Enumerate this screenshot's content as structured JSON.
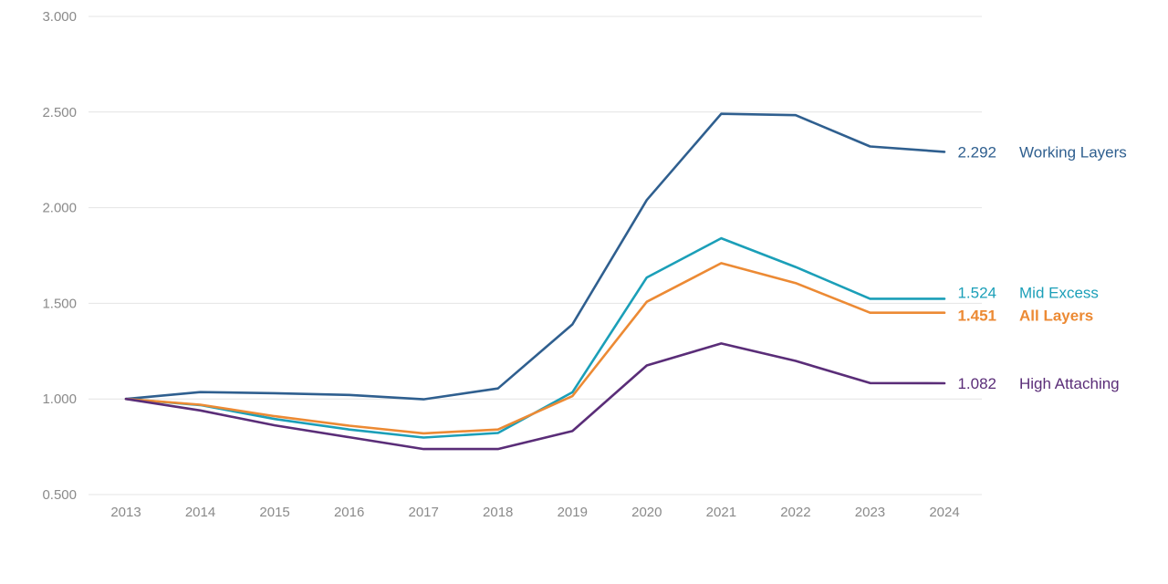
{
  "chart_data": {
    "type": "line",
    "categories": [
      "2013",
      "2014",
      "2015",
      "2016",
      "2017",
      "2018",
      "2019",
      "2020",
      "2021",
      "2022",
      "2023",
      "2024"
    ],
    "y_ticks": [
      "0.500",
      "1.000",
      "1.500",
      "2.000",
      "2.500",
      "3.000"
    ],
    "ylim": [
      0.5,
      3.0
    ],
    "grid": "horizontal",
    "legend": "inline-right",
    "series": [
      {
        "name": "Working Layers",
        "color": "#2f5f8f",
        "bold": false,
        "end_label": "2.292",
        "values": [
          1.0,
          1.036,
          1.03,
          1.021,
          0.998,
          1.055,
          1.39,
          2.04,
          2.491,
          2.484,
          2.32,
          2.292
        ]
      },
      {
        "name": "Mid Excess",
        "color": "#1b9fb8",
        "bold": false,
        "end_label": "1.524",
        "values": [
          1.0,
          0.968,
          0.895,
          0.84,
          0.798,
          0.822,
          1.035,
          1.635,
          1.84,
          1.69,
          1.524,
          1.524
        ]
      },
      {
        "name": "All Layers",
        "color": "#ec8a34",
        "bold": true,
        "end_label": "1.451",
        "values": [
          1.0,
          0.97,
          0.91,
          0.86,
          0.82,
          0.84,
          1.015,
          1.508,
          1.71,
          1.606,
          1.451,
          1.451
        ]
      },
      {
        "name": "High Attaching",
        "color": "#5a2d78",
        "bold": false,
        "end_label": "1.082",
        "values": [
          1.0,
          0.94,
          0.862,
          0.8,
          0.738,
          0.738,
          0.832,
          1.175,
          1.29,
          1.199,
          1.083,
          1.082
        ]
      }
    ]
  }
}
